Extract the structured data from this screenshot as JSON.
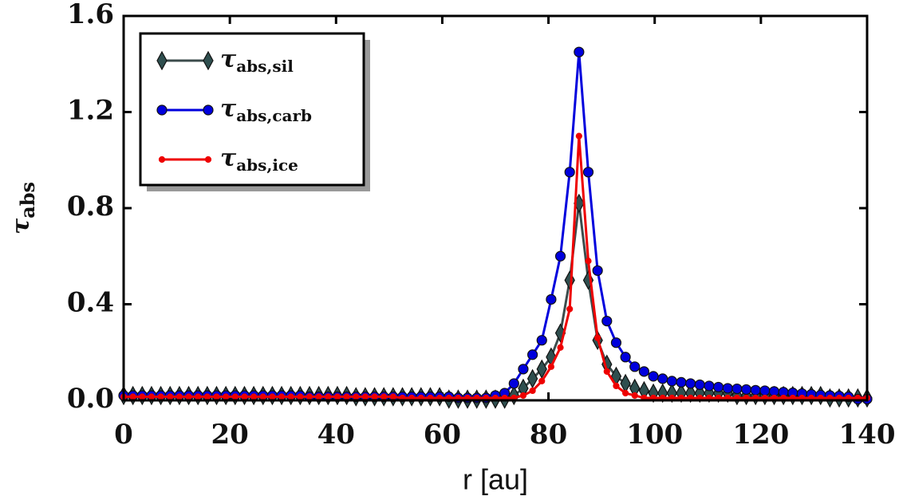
{
  "chart_data": {
    "type": "line",
    "xlabel": "r [au]",
    "ylabel": "τabs",
    "x": [
      0,
      1.75,
      3.5,
      5.25,
      7,
      8.75,
      10.5,
      12.25,
      14,
      15.75,
      17.5,
      19.25,
      21,
      22.75,
      24.5,
      26.25,
      28,
      29.75,
      31.5,
      33.25,
      35,
      36.75,
      38.5,
      40.25,
      42,
      43.75,
      45.5,
      47.25,
      49,
      50.75,
      52.5,
      54.25,
      56,
      57.75,
      59.5,
      61.25,
      63,
      64.75,
      66.5,
      68.25,
      70,
      71.75,
      73.5,
      75.25,
      77,
      78.75,
      80.5,
      82.25,
      84,
      85.75,
      87.5,
      89.25,
      91,
      92.75,
      94.5,
      96.25,
      98,
      99.75,
      101.5,
      103.25,
      105,
      106.75,
      108.5,
      110.25,
      112,
      113.75,
      115.5,
      117.25,
      119,
      120.75,
      122.5,
      124.25,
      126,
      127.75,
      129.5,
      131.25,
      133,
      134.75,
      136.5,
      138.25,
      140
    ],
    "series": [
      {
        "name": "τabs,sil",
        "color": "#2f4f4f",
        "marker": "diamond",
        "values": [
          0.02,
          0.02,
          0.02,
          0.02,
          0.02,
          0.02,
          0.02,
          0.02,
          0.02,
          0.02,
          0.02,
          0.02,
          0.02,
          0.02,
          0.02,
          0.02,
          0.02,
          0.02,
          0.02,
          0.02,
          0.02,
          0.02,
          0.02,
          0.02,
          0.02,
          0.015,
          0.015,
          0.015,
          0.015,
          0.015,
          0.015,
          0.015,
          0.015,
          0.015,
          0.015,
          0.005,
          0.005,
          0.005,
          0.005,
          0.005,
          0.005,
          0.005,
          0.02,
          0.05,
          0.09,
          0.13,
          0.18,
          0.28,
          0.5,
          0.82,
          0.5,
          0.25,
          0.15,
          0.1,
          0.07,
          0.05,
          0.04,
          0.03,
          0.03,
          0.03,
          0.03,
          0.03,
          0.03,
          0.03,
          0.03,
          0.03,
          0.02,
          0.02,
          0.02,
          0.02,
          0.02,
          0.02,
          0.02,
          0.02,
          0.02,
          0.02,
          0.01,
          0.01,
          0.01,
          0.01,
          0.01
        ]
      },
      {
        "name": "τabs,carb",
        "color": "#0000dd",
        "marker": "circle",
        "values": [
          0.02,
          0.02,
          0.02,
          0.02,
          0.02,
          0.02,
          0.02,
          0.02,
          0.02,
          0.02,
          0.02,
          0.02,
          0.02,
          0.02,
          0.02,
          0.02,
          0.02,
          0.02,
          0.02,
          0.02,
          0.015,
          0.015,
          0.015,
          0.015,
          0.015,
          0.015,
          0.015,
          0.015,
          0.015,
          0.015,
          0.015,
          0.015,
          0.015,
          0.015,
          0.015,
          0.015,
          0.01,
          0.01,
          0.01,
          0.01,
          0.02,
          0.03,
          0.07,
          0.13,
          0.19,
          0.25,
          0.42,
          0.6,
          0.95,
          1.45,
          0.95,
          0.54,
          0.33,
          0.24,
          0.18,
          0.14,
          0.12,
          0.1,
          0.09,
          0.08,
          0.075,
          0.07,
          0.065,
          0.06,
          0.055,
          0.05,
          0.048,
          0.045,
          0.042,
          0.04,
          0.037,
          0.034,
          0.031,
          0.028,
          0.025,
          0.022,
          0.02,
          0.018,
          0.015,
          0.005,
          0.005
        ]
      },
      {
        "name": "τabs,ice",
        "color": "#ee0000",
        "marker": "dot",
        "values": [
          0.015,
          0.015,
          0.015,
          0.015,
          0.015,
          0.015,
          0.015,
          0.015,
          0.015,
          0.015,
          0.015,
          0.015,
          0.015,
          0.015,
          0.015,
          0.015,
          0.015,
          0.015,
          0.015,
          0.015,
          0.015,
          0.015,
          0.015,
          0.015,
          0.015,
          0.015,
          0.015,
          0.015,
          0.015,
          0.015,
          0.01,
          0.01,
          0.01,
          0.01,
          0.01,
          0.01,
          0.01,
          0.01,
          0.01,
          0.01,
          0.01,
          0.01,
          0.01,
          0.02,
          0.04,
          0.08,
          0.14,
          0.22,
          0.38,
          1.1,
          0.58,
          0.26,
          0.12,
          0.06,
          0.03,
          0.02,
          0.01,
          0.01,
          0.01,
          0.01,
          0.01,
          0.01,
          0.01,
          0.01,
          0.01,
          0.01,
          0.01,
          0.01,
          0.01,
          0.01,
          0.01,
          0.01,
          0.01,
          0.01,
          0.01,
          0.01,
          0.01,
          0.01,
          0.01,
          0.01,
          0.01
        ]
      }
    ],
    "xlim": [
      0,
      140
    ],
    "xticks": [
      0,
      20,
      40,
      60,
      80,
      100,
      120,
      140
    ],
    "ylim": [
      0,
      1.6
    ],
    "yticks": [
      {
        "value": 0,
        "label": "0.0"
      },
      {
        "value": 0.4,
        "label": "0.4"
      },
      {
        "value": 0.8,
        "label": "0.8"
      },
      {
        "value": 1.2,
        "label": "1.2"
      },
      {
        "value": 1.6,
        "label": "1.6"
      }
    ],
    "legend": "upper left",
    "grid": false
  }
}
